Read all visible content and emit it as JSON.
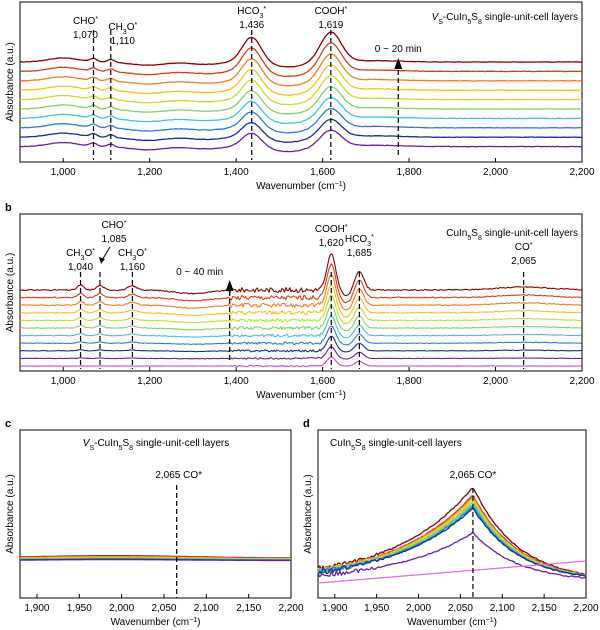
{
  "figure": {
    "panels": [
      {
        "id": "a",
        "letter": "a",
        "title": "VS-CuIn5S8 single-unit-cell layers",
        "title_main": "V",
        "title_sub": "S",
        "title_rest": "-CuIn",
        "title_sub2": "5",
        "title_rest2": "S",
        "title_sub3": "8",
        "title_tail": " single-unit-cell layers",
        "xlabel": "Wavenumber (cm−1)",
        "xlabel_main": "Wavenumber (cm",
        "xlabel_sup": "−1",
        "xlabel_close": ")",
        "ylabel": "Absorbance (a.u.)",
        "time_label": "0 ~ 20 min",
        "annotations": [
          {
            "species": "CHO*",
            "wavenumber": "1,070"
          },
          {
            "species": "CH3O*",
            "wavenumber": "1,110"
          },
          {
            "species": "HCO3*",
            "wavenumber": "1,436"
          },
          {
            "species": "COOH*",
            "wavenumber": "1,619"
          }
        ]
      },
      {
        "id": "b",
        "letter": "b",
        "title": "CuIn5S8 single-unit-cell layers",
        "xlabel": "Wavenumber (cm−1)",
        "ylabel": "Absorbance (a.u.)",
        "time_label": "0 ~ 40 min",
        "annotations": [
          {
            "species": "CH3O*",
            "wavenumber": "1,040"
          },
          {
            "species": "CHO*",
            "wavenumber": "1,085"
          },
          {
            "species": "CH3O*",
            "wavenumber": "1,160"
          },
          {
            "species": "COOH*",
            "wavenumber": "1,620"
          },
          {
            "species": "HCO3*",
            "wavenumber": "1,685"
          },
          {
            "species": "CO*",
            "wavenumber": "2,065"
          }
        ]
      },
      {
        "id": "c",
        "letter": "c",
        "title": "VS-CuIn5S8 single-unit-cell layers",
        "xlabel": "Wavenumber (cm−1)",
        "ylabel": "Absorbance (a.u.)",
        "annotation": "2,065 CO*"
      },
      {
        "id": "d",
        "letter": "d",
        "title": "CuIn5S8 single-unit-cell layers",
        "xlabel": "Wavenumber (cm−1)",
        "ylabel": "Absorbance (a.u.)",
        "annotation": "2,065 CO*"
      }
    ]
  },
  "chart_data": [
    {
      "panel": "a",
      "type": "line",
      "xlim": [
        900,
        2200
      ],
      "xticks": [
        1000,
        1200,
        1400,
        1600,
        1800,
        2000,
        2200
      ],
      "xtick_labels": [
        "1,000",
        "1,200",
        "1,400",
        "1,600",
        "1,800",
        "2,000",
        "2,200"
      ],
      "n_series": 10,
      "series_colors": [
        "#8B0000",
        "#D2401A",
        "#F07D1E",
        "#F0C419",
        "#C6DE2A",
        "#7FD36A",
        "#39C9D6",
        "#2B7DD8",
        "#1A2BA0",
        "#6A1FA8"
      ],
      "peaks_cm1": [
        1070,
        1110,
        1436,
        1619
      ],
      "dashed_lines_cm1": [
        1070,
        1110,
        1436,
        1619
      ],
      "time_arrow_cm1": 1775,
      "time_range": "0 ~ 20 min"
    },
    {
      "panel": "b",
      "type": "line",
      "xlim": [
        900,
        2200
      ],
      "xticks": [
        1000,
        1200,
        1400,
        1600,
        1800,
        2000,
        2200
      ],
      "xtick_labels": [
        "1,000",
        "1,200",
        "1,400",
        "1,600",
        "1,800",
        "2,000",
        "2,200"
      ],
      "n_series": 11,
      "series_colors": [
        "#8B0000",
        "#D2401A",
        "#F07D1E",
        "#F0C419",
        "#C6DE2A",
        "#7FD36A",
        "#39C9D6",
        "#2B7DD8",
        "#1A2BA0",
        "#6A1FA8",
        "#C04BD8"
      ],
      "peaks_cm1": [
        1040,
        1085,
        1160,
        1620,
        1685,
        2065
      ],
      "dashed_lines_cm1": [
        1040,
        1085,
        1160,
        1620,
        1685,
        2065
      ],
      "time_arrow_cm1": 1385,
      "time_range": "0 ~ 40 min"
    },
    {
      "panel": "c",
      "type": "line",
      "xlim": [
        1880,
        2200
      ],
      "xticks": [
        1900,
        1950,
        2000,
        2050,
        2100,
        2150,
        2200
      ],
      "xtick_labels": [
        "1,900",
        "1,950",
        "2,000",
        "2,050",
        "2,100",
        "2,150",
        "2,200"
      ],
      "series_colors": [
        "#8B0000",
        "#D2401A",
        "#F07D1E",
        "#F0C419",
        "#C6DE2A",
        "#7FD36A",
        "#39C9D6",
        "#2B7DD8",
        "#1A2BA0",
        "#6A1FA8"
      ],
      "dashed_line_cm1": 2065
    },
    {
      "panel": "d",
      "type": "line",
      "xlim": [
        1880,
        2200
      ],
      "xticks": [
        1900,
        1950,
        2000,
        2050,
        2100,
        2150,
        2200
      ],
      "xtick_labels": [
        "1,900",
        "1,950",
        "2,000",
        "2,050",
        "2,100",
        "2,150",
        "2,200"
      ],
      "series_colors": [
        "#8B0000",
        "#D2401A",
        "#F07D1E",
        "#F0C419",
        "#C6DE2A",
        "#7FD36A",
        "#39C9D6",
        "#2B7DD8",
        "#1A2BA0",
        "#6A1FA8",
        "#E070E0"
      ],
      "peak_cm1": 2065,
      "dashed_line_cm1": 2065
    }
  ]
}
